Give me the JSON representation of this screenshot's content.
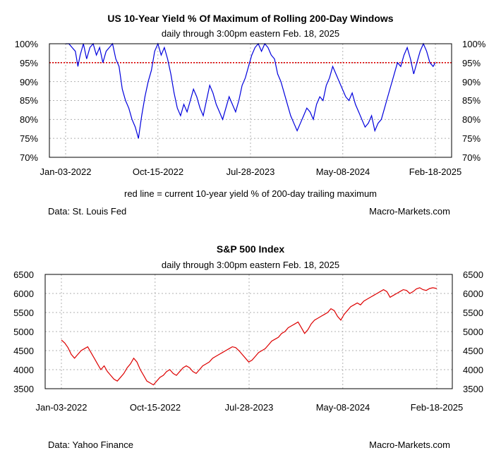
{
  "chart_data": [
    {
      "type": "line",
      "title": "US 10-Year Yield % Of Maximum of Rolling 200-Day Windows",
      "subtitle": "daily through 3:00pm eastern Feb. 18, 2025",
      "ylim": [
        70,
        100
      ],
      "y_ticks": [
        "70%",
        "75%",
        "80%",
        "85%",
        "90%",
        "95%",
        "100%"
      ],
      "x_tick_labels": [
        "Jan-03-2022",
        "Oct-15-2022",
        "Jul-28-2023",
        "May-08-2024",
        "Feb-18-2025"
      ],
      "x_domain": [
        0,
        1142
      ],
      "x_tick_days": [
        0,
        285,
        571,
        856,
        1142
      ],
      "grid": true,
      "reference_line": {
        "value": 95,
        "color": "#dd0000",
        "style": "dotted"
      },
      "note": "red line = current 10-year yield % of 200-day trailing maximum",
      "source": "Data: St. Louis Fed",
      "credit": "Macro-Markets.com",
      "series": [
        {
          "name": "10-year yield % of 200-day max",
          "color": "#0000dd",
          "x": [
            0,
            10,
            20,
            30,
            38,
            45,
            55,
            65,
            75,
            85,
            95,
            105,
            115,
            125,
            135,
            145,
            155,
            165,
            175,
            185,
            195,
            205,
            215,
            225,
            235,
            245,
            255,
            265,
            275,
            285,
            295,
            305,
            315,
            325,
            335,
            345,
            355,
            365,
            375,
            385,
            395,
            405,
            415,
            425,
            435,
            445,
            455,
            465,
            475,
            485,
            495,
            505,
            515,
            525,
            535,
            545,
            555,
            565,
            575,
            585,
            595,
            605,
            615,
            625,
            635,
            645,
            655,
            665,
            675,
            685,
            695,
            705,
            715,
            725,
            735,
            745,
            755,
            765,
            775,
            785,
            795,
            805,
            815,
            825,
            835,
            845,
            855,
            865,
            875,
            885,
            895,
            905,
            915,
            925,
            935,
            945,
            955,
            965,
            975,
            985,
            995,
            1005,
            1015,
            1025,
            1035,
            1045,
            1055,
            1065,
            1075,
            1085,
            1095,
            1105,
            1115,
            1125,
            1135,
            1142
          ],
          "values": [
            100,
            100,
            99,
            98,
            94,
            97,
            100,
            96,
            99,
            100,
            97,
            99,
            95,
            98,
            99,
            100,
            96,
            94,
            88,
            85,
            83,
            80,
            78,
            75,
            81,
            86,
            90,
            93,
            98,
            100,
            97,
            99,
            96,
            92,
            87,
            83,
            81,
            84,
            82,
            85,
            88,
            86,
            83,
            81,
            85,
            89,
            87,
            84,
            82,
            80,
            83,
            86,
            84,
            82,
            85,
            89,
            91,
            94,
            97,
            99,
            100,
            98,
            100,
            99,
            97,
            96,
            92,
            90,
            87,
            84,
            81,
            79,
            77,
            79,
            81,
            83,
            82,
            80,
            84,
            86,
            85,
            89,
            91,
            94,
            92,
            90,
            88,
            86,
            85,
            87,
            84,
            82,
            80,
            78,
            79,
            81,
            77,
            79,
            80,
            83,
            86,
            89,
            92,
            95,
            94,
            97,
            99,
            96,
            92,
            95,
            98,
            100,
            98,
            95,
            94,
            95
          ]
        }
      ]
    },
    {
      "type": "line",
      "title": "S&P 500 Index",
      "subtitle": "daily through 3:00pm eastern Feb. 18, 2025",
      "ylim": [
        3500,
        6500
      ],
      "y_ticks": [
        "3500",
        "4000",
        "4500",
        "5000",
        "5500",
        "6000",
        "6500"
      ],
      "x_tick_labels": [
        "Jan-03-2022",
        "Oct-15-2022",
        "Jul-28-2023",
        "May-08-2024",
        "Feb-18-2025"
      ],
      "x_domain": [
        0,
        1142
      ],
      "x_tick_days": [
        0,
        285,
        571,
        856,
        1142
      ],
      "grid": true,
      "source": "Data: Yahoo Finance",
      "credit": "Macro-Markets.com",
      "series": [
        {
          "name": "S&P 500",
          "color": "#dd0000",
          "x": [
            0,
            10,
            20,
            30,
            40,
            50,
            60,
            70,
            80,
            90,
            100,
            110,
            120,
            130,
            140,
            150,
            160,
            170,
            180,
            190,
            200,
            210,
            220,
            230,
            240,
            250,
            260,
            270,
            280,
            290,
            300,
            310,
            320,
            330,
            340,
            350,
            360,
            370,
            380,
            390,
            400,
            410,
            420,
            430,
            440,
            450,
            460,
            470,
            480,
            490,
            500,
            510,
            520,
            530,
            540,
            550,
            560,
            570,
            580,
            590,
            600,
            610,
            620,
            630,
            640,
            650,
            660,
            670,
            680,
            690,
            700,
            710,
            720,
            730,
            740,
            750,
            760,
            770,
            780,
            790,
            800,
            810,
            820,
            830,
            840,
            850,
            860,
            870,
            880,
            890,
            900,
            910,
            920,
            930,
            940,
            950,
            960,
            970,
            980,
            990,
            1000,
            1010,
            1020,
            1030,
            1040,
            1050,
            1060,
            1070,
            1080,
            1090,
            1100,
            1110,
            1120,
            1130,
            1142
          ],
          "values": [
            4780,
            4700,
            4580,
            4400,
            4300,
            4400,
            4500,
            4550,
            4600,
            4450,
            4300,
            4150,
            4000,
            4100,
            3950,
            3850,
            3750,
            3700,
            3800,
            3900,
            4050,
            4150,
            4300,
            4200,
            4000,
            3850,
            3700,
            3650,
            3600,
            3700,
            3800,
            3850,
            3950,
            4000,
            3900,
            3850,
            3950,
            4050,
            4100,
            4050,
            3950,
            3900,
            4000,
            4100,
            4150,
            4200,
            4300,
            4350,
            4400,
            4450,
            4500,
            4550,
            4600,
            4580,
            4500,
            4400,
            4300,
            4200,
            4250,
            4350,
            4450,
            4500,
            4550,
            4650,
            4750,
            4800,
            4850,
            4950,
            5000,
            5100,
            5150,
            5200,
            5250,
            5100,
            4950,
            5050,
            5200,
            5300,
            5350,
            5400,
            5450,
            5500,
            5600,
            5550,
            5400,
            5300,
            5450,
            5550,
            5650,
            5700,
            5750,
            5700,
            5800,
            5850,
            5900,
            5950,
            6000,
            6050,
            6100,
            6050,
            5900,
            5950,
            6000,
            6050,
            6100,
            6080,
            6000,
            6050,
            6120,
            6150,
            6100,
            6080,
            6130,
            6150,
            6130
          ]
        }
      ]
    }
  ]
}
